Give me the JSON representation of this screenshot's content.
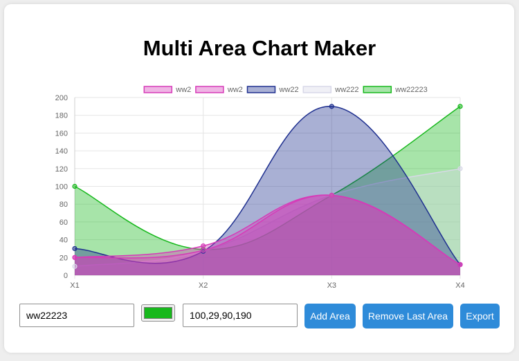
{
  "page": {
    "title": "Multi Area Chart Maker"
  },
  "controls": {
    "name_value": "ww22223",
    "color_value": "#17b81c",
    "data_value": "100,29,90,190",
    "add_label": "Add Area",
    "remove_label": "Remove Last Area",
    "export_label": "Export"
  },
  "chart_data": {
    "type": "area",
    "categories": [
      "X1",
      "X2",
      "X3",
      "X4"
    ],
    "ylim": [
      0,
      200
    ],
    "yticks": [
      0,
      20,
      40,
      60,
      80,
      100,
      120,
      140,
      160,
      180,
      200
    ],
    "legend_position": "top",
    "grid": true,
    "curve": "smooth",
    "series": [
      {
        "name": "ww2",
        "values": [
          20,
          28,
          90,
          12
        ],
        "color": "#d63ab8"
      },
      {
        "name": "ww2",
        "values": [
          20,
          33,
          90,
          12
        ],
        "color": "#d63ab8"
      },
      {
        "name": "ww22",
        "values": [
          30,
          27,
          190,
          12
        ],
        "color": "#1e2f8f"
      },
      {
        "name": "ww222",
        "values": [
          10,
          27,
          90,
          120
        ],
        "color": "#d8d8e8"
      },
      {
        "name": "ww22223",
        "values": [
          100,
          29,
          90,
          190
        ],
        "color": "#17b81c"
      }
    ]
  }
}
